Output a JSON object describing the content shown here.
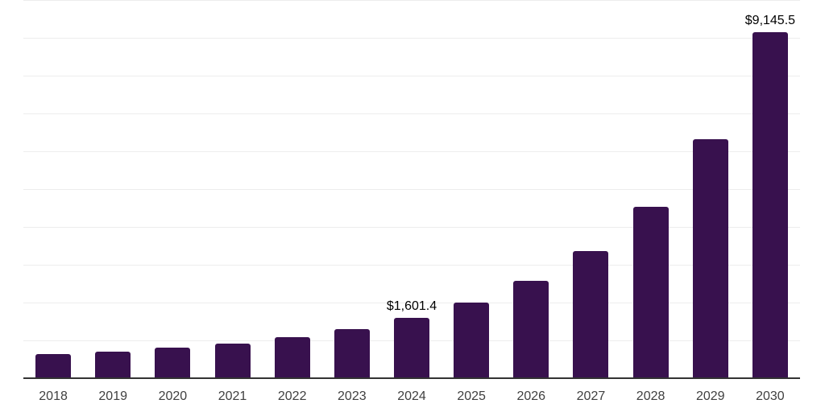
{
  "chart_data": {
    "type": "bar",
    "title": "",
    "xlabel": "",
    "ylabel": "",
    "categories": [
      "2018",
      "2019",
      "2020",
      "2021",
      "2022",
      "2023",
      "2024",
      "2025",
      "2026",
      "2027",
      "2028",
      "2029",
      "2030"
    ],
    "values": [
      630,
      710,
      810,
      920,
      1075,
      1300,
      1601.4,
      2000,
      2570,
      3355,
      4525,
      6310,
      9145.5
    ],
    "data_labels": [
      null,
      null,
      null,
      null,
      null,
      null,
      "$1,601.4",
      null,
      null,
      null,
      null,
      null,
      "$9,145.5"
    ],
    "ylim": [
      0,
      10000
    ],
    "grid": true,
    "gridline_interval": 1000,
    "legend_position": "none",
    "bar_color": "#38114e",
    "grid_color": "#ededed",
    "axis_line_color": "#333333",
    "tick_label_color": "#404040",
    "data_label_color": "#000000",
    "background_color": "#ffffff"
  }
}
